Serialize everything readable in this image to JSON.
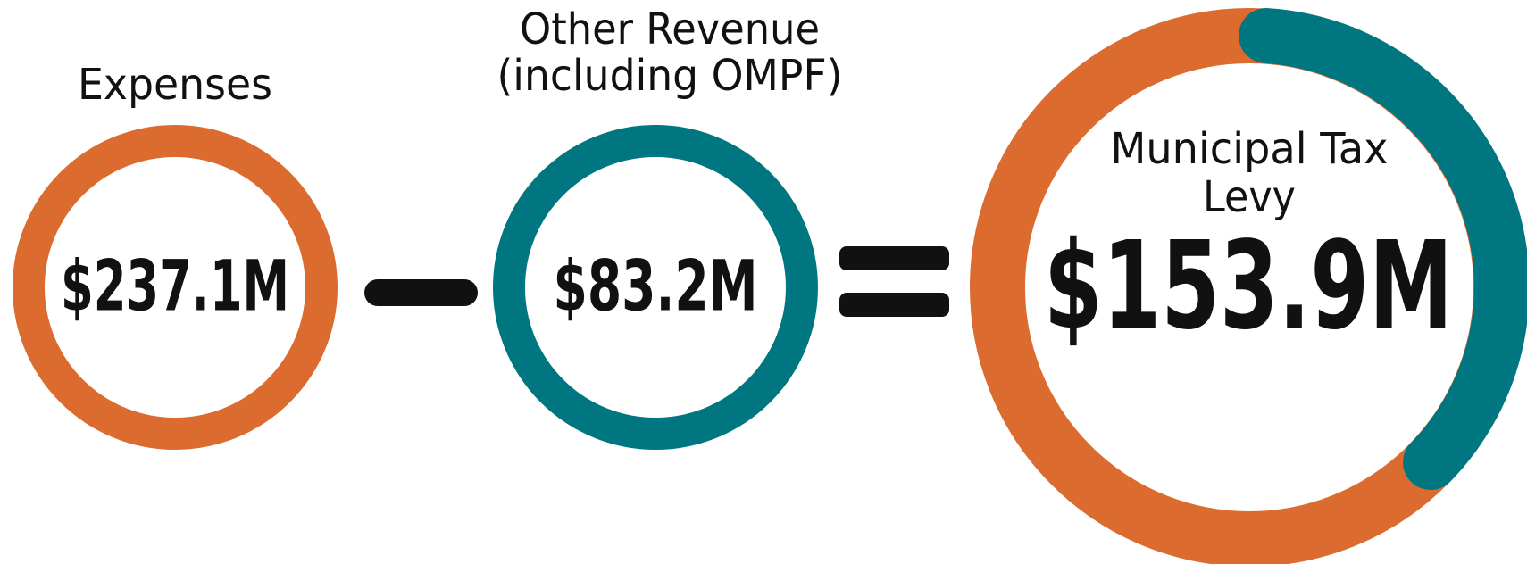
{
  "expenses": {
    "label": "Expenses",
    "amount": "$237.1M"
  },
  "other_revenue": {
    "label_lines": [
      "Other Revenue",
      "(including OMPF)"
    ],
    "amount": "$83.2M"
  },
  "tax_levy": {
    "label_lines": [
      "Municipal Tax",
      "Levy"
    ],
    "amount": "$153.9M"
  }
}
